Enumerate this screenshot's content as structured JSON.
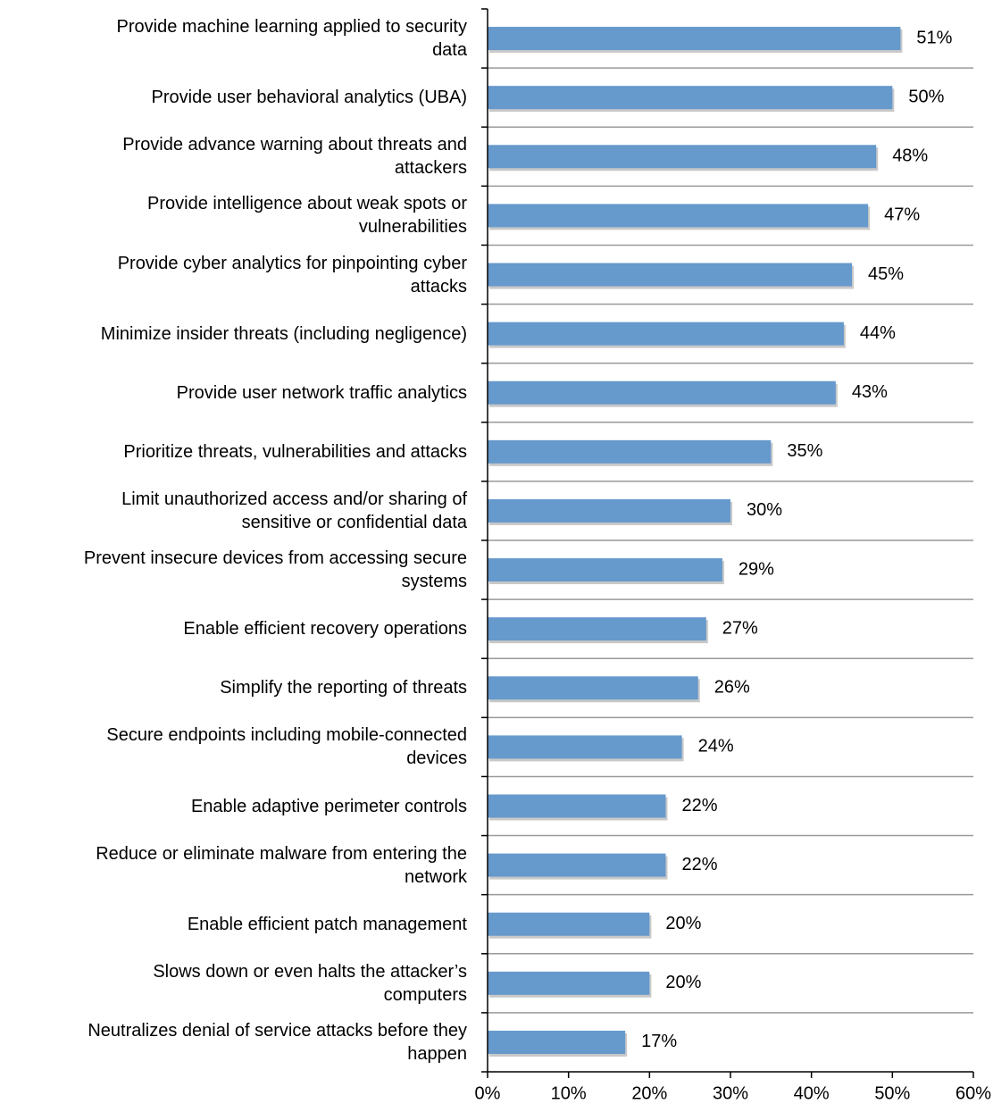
{
  "chart_data": {
    "type": "bar",
    "orientation": "horizontal",
    "categories": [
      "Provide machine learning applied to security\ndata",
      "Provide user behavioral analytics (UBA)",
      "Provide advance warning about threats and\nattackers",
      "Provide intelligence about weak spots or\nvulnerabilities",
      "Provide cyber analytics for pinpointing cyber\nattacks",
      "Minimize insider threats (including negligence)",
      "Provide user network traffic analytics",
      "Prioritize threats, vulnerabilities and attacks",
      "Limit unauthorized access and/or sharing of\nsensitive or confidential data",
      "Prevent insecure devices from accessing secure\nsystems",
      "Enable efficient recovery operations",
      "Simplify the reporting of threats",
      "Secure endpoints including mobile-connected\ndevices",
      "Enable adaptive perimeter controls",
      "Reduce or eliminate malware from entering the\nnetwork",
      "Enable efficient patch management",
      "Slows down or even halts the attacker’s\ncomputers",
      "Neutralizes denial of service attacks before they\nhappen"
    ],
    "values": [
      51,
      50,
      48,
      47,
      45,
      44,
      43,
      35,
      30,
      29,
      27,
      26,
      24,
      22,
      22,
      20,
      20,
      17
    ],
    "value_labels": [
      "51%",
      "50%",
      "48%",
      "47%",
      "45%",
      "44%",
      "43%",
      "35%",
      "30%",
      "29%",
      "27%",
      "26%",
      "24%",
      "22%",
      "22%",
      "20%",
      "20%",
      "17%"
    ],
    "color": "#6699cc",
    "xlim": [
      0,
      60
    ],
    "xticks": [
      {
        "value": 0,
        "label": "0%"
      },
      {
        "value": 10,
        "label": "10%"
      },
      {
        "value": 20,
        "label": "20%"
      },
      {
        "value": 30,
        "label": "30%"
      },
      {
        "value": 40,
        "label": "40%"
      },
      {
        "value": 50,
        "label": "50%"
      },
      {
        "value": 60,
        "label": "60%"
      }
    ],
    "grid": true
  }
}
